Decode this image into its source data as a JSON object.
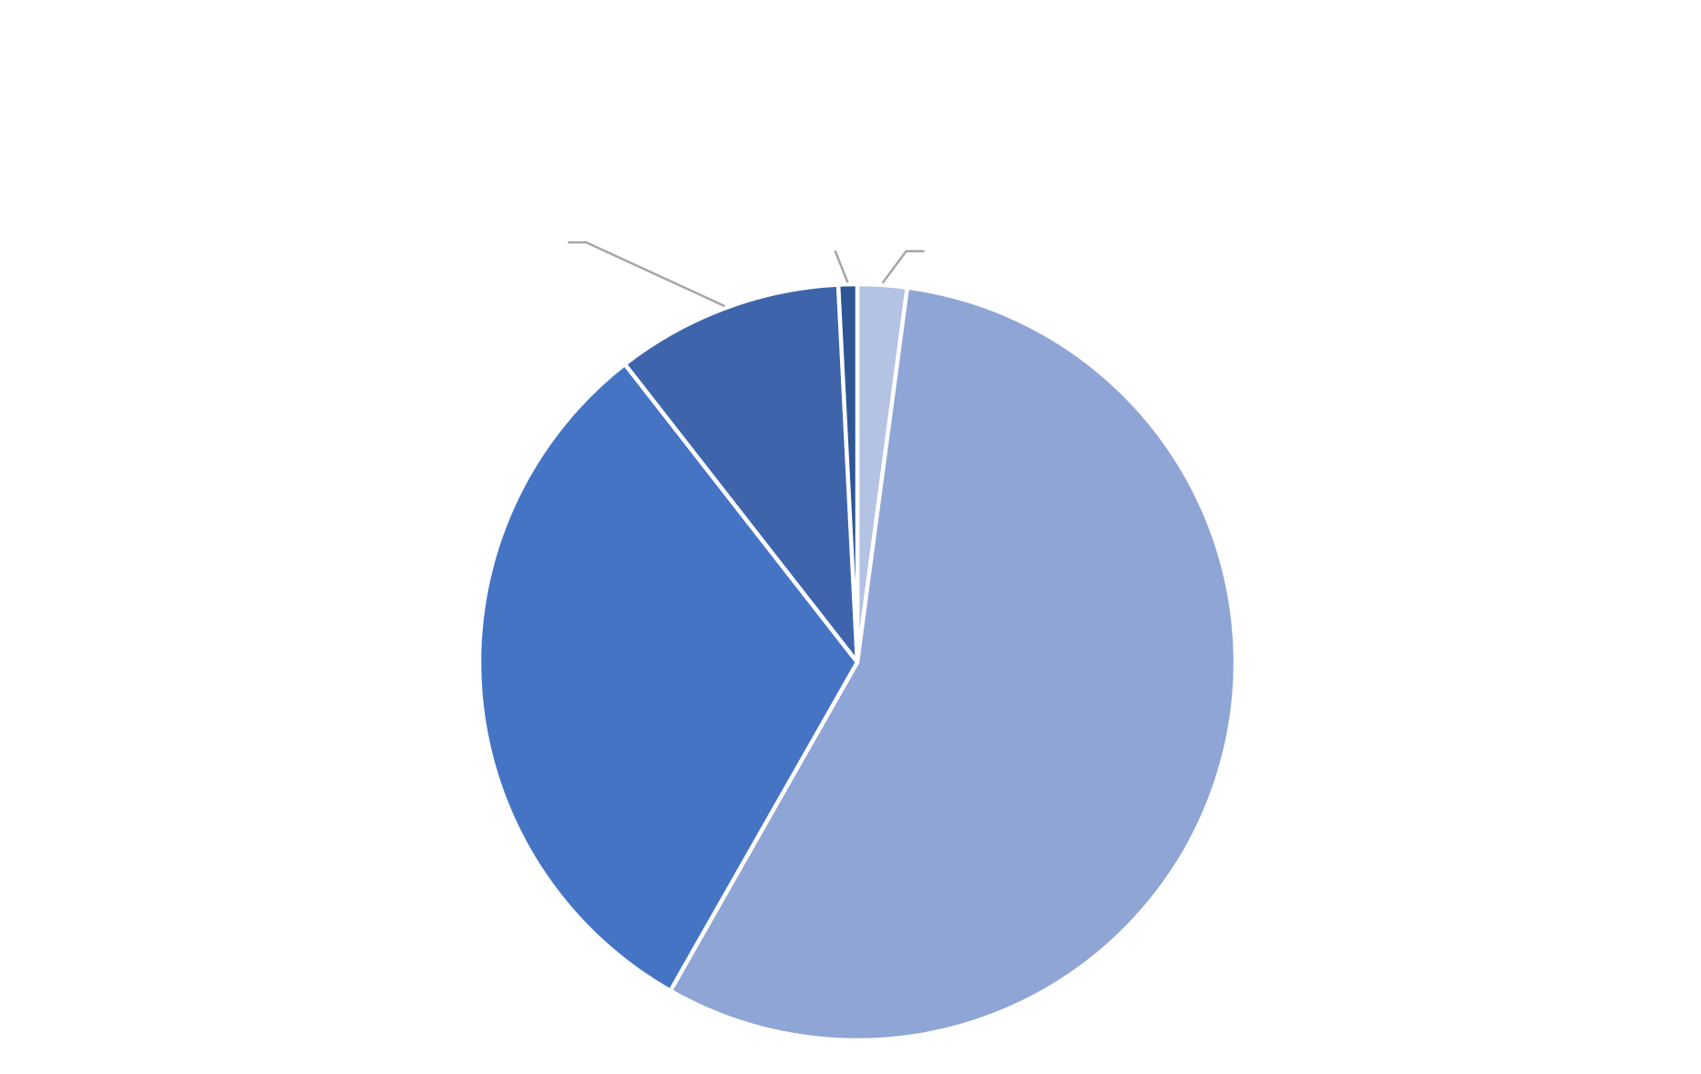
{
  "chart_data": {
    "type": "pie",
    "title": "",
    "categories": [
      "",
      "",
      "",
      "",
      ""
    ],
    "values": [
      2.1,
      55.9,
      31.1,
      9.7,
      0.8
    ],
    "colors": [
      "#B4C2E3",
      "#8FA5D6",
      "#4574C5",
      "#3E65AC",
      "#2E5596"
    ],
    "start_angle_deg": 0,
    "direction": "clockwise",
    "slice_separator_color": "#FFFFFF",
    "leader_line_color": "#A6A6A6",
    "legend": "none",
    "data_labels": [
      "",
      "",
      "",
      "",
      ""
    ]
  }
}
